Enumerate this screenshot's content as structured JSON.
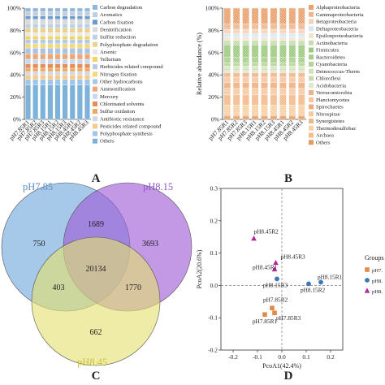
{
  "panel_labels": {
    "a": "A",
    "b": "B",
    "c": "C",
    "d": "D"
  },
  "chart_data": [
    {
      "type": "bar",
      "stacked": true,
      "panel": "A",
      "categories": [
        "pH7.85R1",
        "pH7.85R2",
        "pH7.85R3",
        "pH8.15R1",
        "pH8.15R2",
        "pH8.15R3",
        "pH8.45R1",
        "pH8.45R2",
        "pH8.45R3"
      ],
      "ylabel": "",
      "ylim": [
        0,
        100
      ],
      "yticks": [
        "0%",
        "20%",
        "40%",
        "60%",
        "80%",
        "100%"
      ],
      "legend_position": "right",
      "series": [
        {
          "name": "Others",
          "color": "#7fb2d9",
          "values": [
            31,
            31,
            31,
            31,
            31,
            31,
            31,
            31,
            31
          ]
        },
        {
          "name": "Polyphosphate synthesis",
          "color": "#9fc5e8",
          "values": [
            5,
            5,
            5,
            5,
            5,
            5,
            5,
            5,
            5
          ]
        },
        {
          "name": "Pesticides related compound",
          "color": "#f6c986",
          "values": [
            4,
            4,
            4,
            4,
            4,
            4,
            4,
            4,
            4
          ]
        },
        {
          "name": "Antibiotic resistance",
          "color": "#cfd8e6",
          "values": [
            3,
            3,
            3,
            3,
            3,
            3,
            3,
            3,
            3
          ]
        },
        {
          "name": "Sulfur oxidation",
          "color": "#f2a666",
          "values": [
            3,
            3,
            3,
            3,
            3,
            3,
            3,
            3,
            3
          ]
        },
        {
          "name": "Chlorinated solvents",
          "color": "#e58f57",
          "values": [
            4,
            4,
            4,
            4,
            4,
            4,
            4,
            4,
            4
          ]
        },
        {
          "name": "Mercury",
          "color": "#c7d9ef",
          "values": [
            4,
            4,
            4,
            4,
            4,
            4,
            4,
            4,
            4
          ]
        },
        {
          "name": "Ammonification",
          "color": "#eea776",
          "values": [
            5,
            5,
            5,
            5,
            5,
            5,
            5,
            5,
            5
          ]
        },
        {
          "name": "Other hydrocarbons",
          "color": "#a9c4e4",
          "values": [
            5,
            5,
            5,
            5,
            5,
            5,
            5,
            5,
            5
          ]
        },
        {
          "name": "Nitrogen fixation",
          "color": "#f5d77c",
          "values": [
            4,
            4,
            4,
            4,
            4,
            4,
            4,
            4,
            4
          ]
        },
        {
          "name": "Herbicides related compound",
          "color": "#b5cbe3",
          "values": [
            4,
            4,
            4,
            4,
            4,
            4,
            4,
            4,
            4
          ]
        },
        {
          "name": "Tellurium",
          "color": "#f4d45e",
          "values": [
            3,
            3,
            3,
            3,
            3,
            3,
            3,
            3,
            3
          ]
        },
        {
          "name": "Arsenic",
          "color": "#e8e8e8",
          "values": [
            3,
            3,
            3,
            3,
            3,
            3,
            3,
            3,
            3
          ]
        },
        {
          "name": "Polyphosphate degradation",
          "color": "#ead28c",
          "values": [
            4,
            4,
            4,
            4,
            4,
            4,
            4,
            4,
            4
          ]
        },
        {
          "name": "Sulfite reduction",
          "color": "#bdd0e6",
          "values": [
            4,
            4,
            4,
            4,
            4,
            4,
            4,
            4,
            4
          ]
        },
        {
          "name": "Denitrification",
          "color": "#d9d9d9",
          "values": [
            4,
            4,
            4,
            4,
            4,
            4,
            4,
            4,
            4
          ]
        },
        {
          "name": "Carbon fixation",
          "color": "#6c9ccc",
          "values": [
            3,
            3,
            3,
            3,
            3,
            3,
            3,
            3,
            3
          ]
        },
        {
          "name": "Aromatics",
          "color": "#c0cfe0",
          "values": [
            4,
            4,
            4,
            4,
            4,
            4,
            4,
            4,
            4
          ]
        },
        {
          "name": "Carbon degradation",
          "color": "#8fb6dc",
          "values": [
            3,
            3,
            3,
            3,
            3,
            3,
            3,
            3,
            3
          ]
        }
      ]
    },
    {
      "type": "bar",
      "stacked": true,
      "panel": "B",
      "categories": [
        "pH7.85R1",
        "pH7.85R2",
        "pH7.85R3",
        "pH8.15R1",
        "pH8.15R2",
        "pH8.15R3",
        "pH8.45R1",
        "pH8.45R2",
        "pH8.45R3"
      ],
      "ylabel": "Relative abundance (%)",
      "ylim": [
        0,
        100
      ],
      "yticks": [
        "0%",
        "20%",
        "40%",
        "60%",
        "80%",
        "100%"
      ],
      "legend_position": "right",
      "series": [
        {
          "name": "Others",
          "color": "#e69a5e",
          "values": [
            3,
            3,
            3,
            3,
            3,
            3,
            3,
            3,
            3
          ]
        },
        {
          "name": "Archaea",
          "color": "#f4bf90",
          "values": [
            2,
            2,
            2,
            2,
            2,
            2,
            2,
            2,
            2
          ]
        },
        {
          "name": "Thermodesulfobac",
          "color": "#f7cfa3",
          "values": [
            8,
            8,
            8,
            8,
            8,
            8,
            8,
            8,
            8
          ]
        },
        {
          "name": "Synergistetes",
          "color": "#f3b88a",
          "values": [
            9,
            9,
            9,
            9,
            9,
            9,
            9,
            9,
            9
          ]
        },
        {
          "name": "Nitrospirae",
          "color": "#f6c8a0",
          "values": [
            6,
            6,
            6,
            6,
            6,
            6,
            6,
            6,
            6
          ]
        },
        {
          "name": "Spirochaetes",
          "color": "#efab7c",
          "values": [
            5,
            5,
            5,
            5,
            5,
            5,
            5,
            5,
            5
          ]
        },
        {
          "name": "Planctomycetes",
          "color": "#f5c59c",
          "values": [
            5,
            5,
            5,
            5,
            5,
            5,
            5,
            5,
            5
          ]
        },
        {
          "name": "Verrucomicrobia",
          "color": "#f0b285",
          "values": [
            4,
            4,
            4,
            4,
            4,
            4,
            4,
            4,
            4
          ]
        },
        {
          "name": "Acidobacteria",
          "color": "#dde6cf",
          "values": [
            2,
            2,
            2,
            2,
            2,
            2,
            2,
            2,
            2
          ]
        },
        {
          "name": "Chloroflexi",
          "color": "#c8dbb0",
          "values": [
            2,
            2,
            2,
            2,
            2,
            2,
            2,
            2,
            2
          ]
        },
        {
          "name": "Deinococcus-Therm",
          "color": "#d2e3ba",
          "values": [
            2,
            2,
            2,
            2,
            2,
            2,
            2,
            2,
            2
          ]
        },
        {
          "name": "Cyanobacteria",
          "color": "#b5d396",
          "values": [
            3,
            3,
            3,
            3,
            3,
            3,
            3,
            3,
            3
          ]
        },
        {
          "name": "Bacteroidetes",
          "color": "#a6cd8a",
          "values": [
            5,
            5,
            5,
            5,
            5,
            5,
            5,
            5,
            5
          ]
        },
        {
          "name": "Firmicutes",
          "color": "#9cc97e",
          "values": [
            11,
            11,
            11,
            11,
            11,
            11,
            11,
            11,
            11
          ]
        },
        {
          "name": "Actinobacteria",
          "color": "#c6dcae",
          "values": [
            4,
            4,
            4,
            4,
            4,
            4,
            4,
            4,
            4
          ]
        },
        {
          "name": "Epsilonproteobacteria",
          "color": "#f2e3cf",
          "values": [
            3,
            3,
            3,
            3,
            3,
            3,
            3,
            3,
            3
          ]
        },
        {
          "name": "Deltaproteobacteria",
          "color": "#d6e6f4",
          "values": [
            3,
            3,
            3,
            3,
            3,
            3,
            3,
            3,
            3
          ]
        },
        {
          "name": "Betaproteobacteria",
          "color": "#f3d2b5",
          "values": [
            4,
            4,
            4,
            4,
            4,
            4,
            4,
            4,
            4
          ]
        },
        {
          "name": "Gammaproteobacteria",
          "color": "#eeb58c",
          "values": [
            5,
            5,
            5,
            5,
            5,
            5,
            5,
            5,
            5
          ]
        },
        {
          "name": "Alphaproteobacteria",
          "color": "#e9a06d",
          "values": [
            14,
            14,
            14,
            14,
            14,
            14,
            14,
            14,
            14
          ]
        }
      ]
    },
    {
      "type": "venn",
      "panel": "C",
      "sets": [
        {
          "name": "pH7.85",
          "color": "#6fa6dc",
          "label_color": "#5b8fc9",
          "only": 750
        },
        {
          "name": "pH8.15",
          "color": "#9e5ad6",
          "label_color": "#9155c9",
          "only": 3693
        },
        {
          "name": "pH8.45",
          "color": "#e3e070",
          "label_color": "#c9c23e",
          "only": 662
        }
      ],
      "intersections": {
        "pH7.85&pH8.15": 1689,
        "pH7.85&pH8.45": 403,
        "pH8.15&pH8.45": 1770,
        "all": 20134
      }
    },
    {
      "type": "scatter",
      "panel": "D",
      "xlabel": "PcoA1(42.4%)",
      "ylabel": "PcoA2(20.6%)",
      "xlim": [
        -0.25,
        0.25
      ],
      "ylim": [
        -0.2,
        0.3
      ],
      "xticks": [
        -0.2,
        -0.1,
        0.0,
        0.1,
        0.2
      ],
      "yticks": [
        -0.2,
        -0.1,
        0.0,
        0.1,
        0.2,
        0.3
      ],
      "legend_title": "Groups",
      "series": [
        {
          "name": "pH7.",
          "marker": "square",
          "color": "#e08a4a",
          "points": [
            {
              "label": "pH7.85R2",
              "x": -0.04,
              "y": -0.07
            },
            {
              "label": "pH7.85R3",
              "x": -0.03,
              "y": -0.085
            },
            {
              "label": "pH7.85R1",
              "x": -0.07,
              "y": -0.09
            }
          ]
        },
        {
          "name": "pH8.",
          "marker": "circle",
          "color": "#3b78b8",
          "points": [
            {
              "label": "pH8.15R1",
              "x": 0.16,
              "y": 0.01
            },
            {
              "label": "pH8.15R2",
              "x": 0.11,
              "y": 0.005
            },
            {
              "label": "pH8.15R3",
              "x": -0.02,
              "y": 0.02
            }
          ]
        },
        {
          "name": "pH8.",
          "marker": "triangle",
          "color": "#b0279a",
          "points": [
            {
              "label": "pH8.45R2",
              "x": -0.115,
              "y": 0.145
            },
            {
              "label": "pH8.45R3",
              "x": -0.025,
              "y": 0.07
            },
            {
              "label": "pH8.45R1",
              "x": -0.03,
              "y": 0.05
            }
          ]
        }
      ]
    }
  ]
}
